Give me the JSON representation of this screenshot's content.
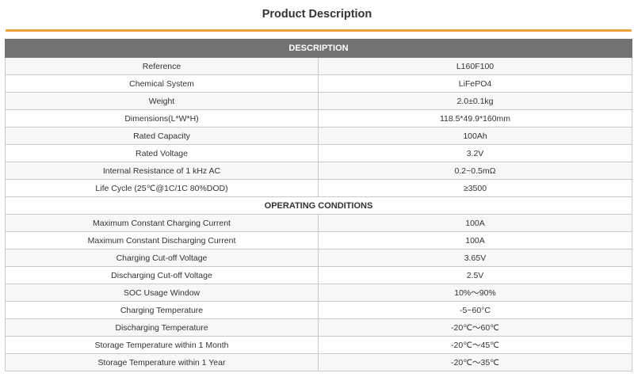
{
  "page": {
    "title": "Product Description",
    "accent_color": "#f0a23a",
    "header_bg": "#727272"
  },
  "table": {
    "header": "DESCRIPTION",
    "description_rows": [
      {
        "label": "Reference",
        "value": "L160F100"
      },
      {
        "label": "Chemical System",
        "value": "LiFePO4"
      },
      {
        "label": "Weight",
        "value": "2.0±0.1kg"
      },
      {
        "label": "Dimensions(L*W*H)",
        "value": "118.5*49.9*160mm"
      },
      {
        "label": "Rated Capacity",
        "value": "100Ah"
      },
      {
        "label": "Rated Voltage",
        "value": "3.2V"
      },
      {
        "label": "Internal Resistance of 1 kHz AC",
        "value": "0.2~0.5mΩ"
      },
      {
        "label": "Life Cycle  (25℃@1C/1C 80%DOD)",
        "value": "≥3500"
      }
    ],
    "section_title": "OPERATING CONDITIONS",
    "operating_rows": [
      {
        "label": "Maximum Constant Charging Current",
        "value": "100A"
      },
      {
        "label": "Maximum Constant Discharging Current",
        "value": "100A"
      },
      {
        "label": "Charging Cut-off Voltage",
        "value": "3.65V"
      },
      {
        "label": "Discharging Cut-off Voltage",
        "value": "2.5V"
      },
      {
        "label": "SOC Usage Window",
        "value": "10%～90%"
      },
      {
        "label": "Charging Temperature",
        "value": "-5~60°C"
      },
      {
        "label": "Discharging Temperature",
        "value": "-20℃～60℃"
      },
      {
        "label": "Storage Temperature within 1 Month",
        "value": "-20℃～45℃"
      },
      {
        "label": "Storage Temperature within 1 Year",
        "value": "-20℃～35℃"
      }
    ]
  }
}
